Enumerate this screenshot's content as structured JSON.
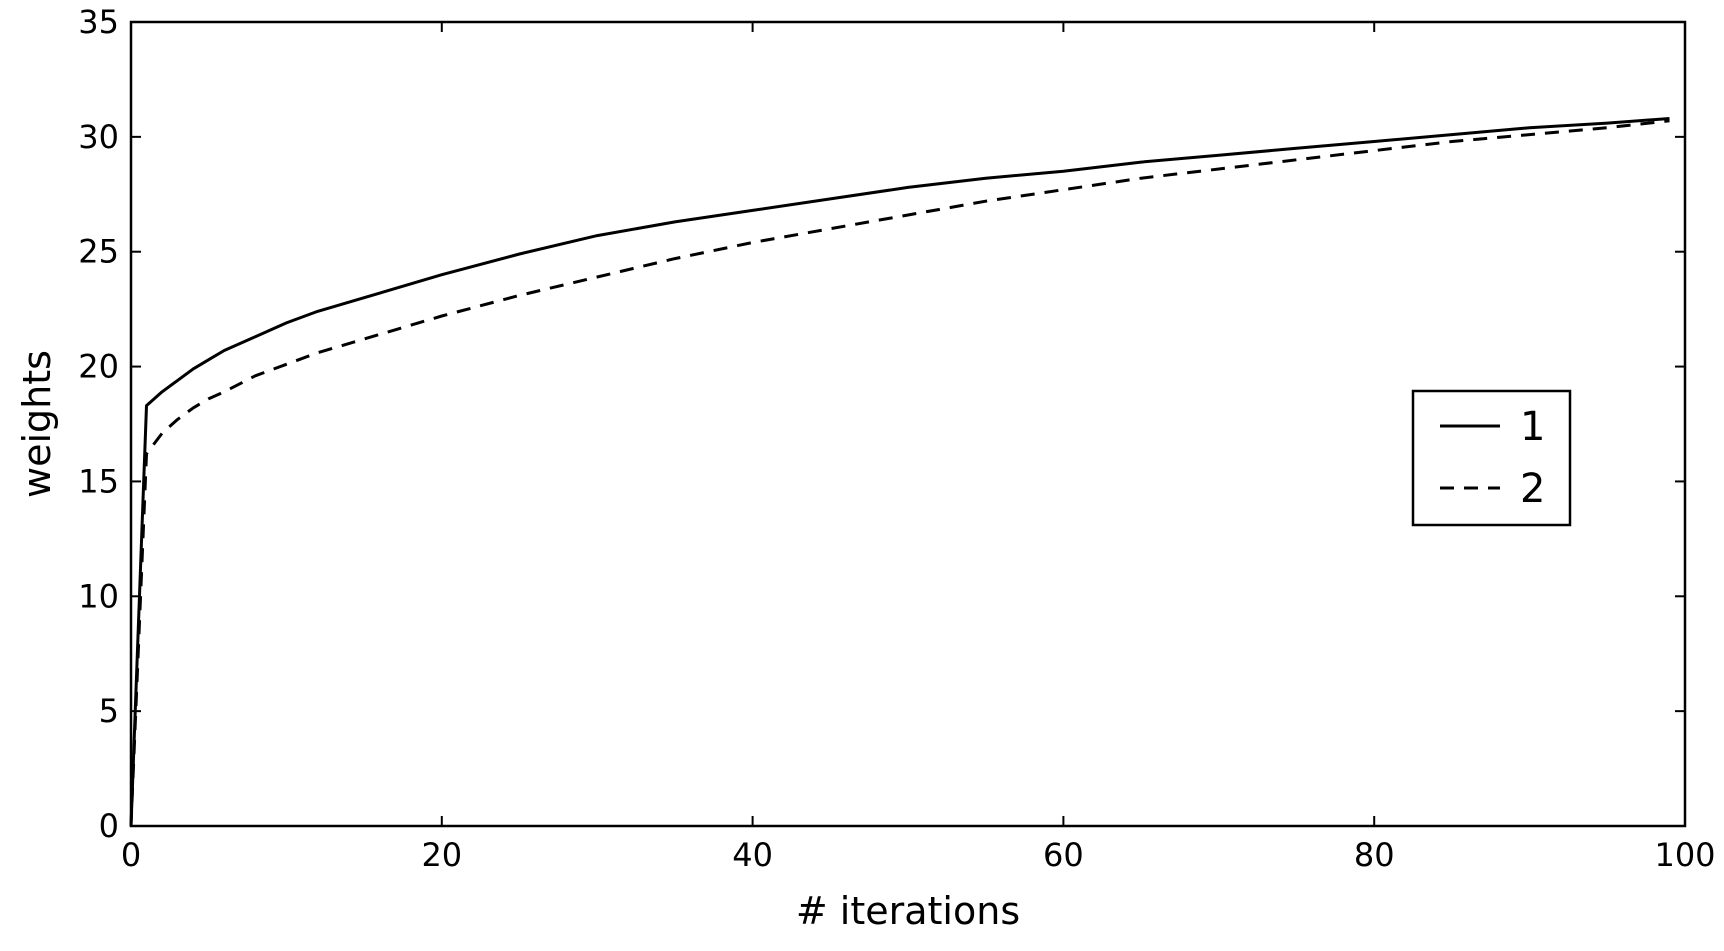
{
  "chart_data": {
    "type": "line",
    "title": "",
    "xlabel": "# iterations",
    "ylabel": "weights",
    "xlim": [
      0,
      100
    ],
    "ylim": [
      0,
      35
    ],
    "xticks": [
      0,
      20,
      40,
      60,
      80,
      100
    ],
    "yticks": [
      0,
      5,
      10,
      15,
      20,
      25,
      30,
      35
    ],
    "grid": false,
    "legend_position": "center-right",
    "series": [
      {
        "name": "1",
        "line_style": "solid",
        "color": "#000000",
        "x": [
          0,
          1,
          2,
          3,
          4,
          5,
          6,
          8,
          10,
          12,
          15,
          20,
          25,
          30,
          35,
          40,
          45,
          50,
          55,
          60,
          65,
          70,
          75,
          80,
          85,
          90,
          95,
          99
        ],
        "y": [
          0,
          18.3,
          18.9,
          19.4,
          19.9,
          20.3,
          20.7,
          21.3,
          21.9,
          22.4,
          23.0,
          24.0,
          24.9,
          25.7,
          26.3,
          26.8,
          27.3,
          27.8,
          28.2,
          28.5,
          28.9,
          29.2,
          29.5,
          29.8,
          30.1,
          30.4,
          30.6,
          30.8
        ]
      },
      {
        "name": "2",
        "line_style": "dashed",
        "color": "#000000",
        "x": [
          0,
          1,
          2,
          3,
          4,
          5,
          6,
          8,
          10,
          12,
          15,
          20,
          25,
          30,
          35,
          40,
          45,
          50,
          55,
          60,
          65,
          70,
          75,
          80,
          85,
          90,
          95,
          99
        ],
        "y": [
          0,
          16.2,
          17.1,
          17.7,
          18.2,
          18.6,
          18.9,
          19.6,
          20.1,
          20.6,
          21.2,
          22.2,
          23.1,
          23.9,
          24.7,
          25.4,
          26.0,
          26.6,
          27.2,
          27.7,
          28.2,
          28.6,
          29.0,
          29.4,
          29.8,
          30.1,
          30.4,
          30.7
        ]
      }
    ]
  }
}
